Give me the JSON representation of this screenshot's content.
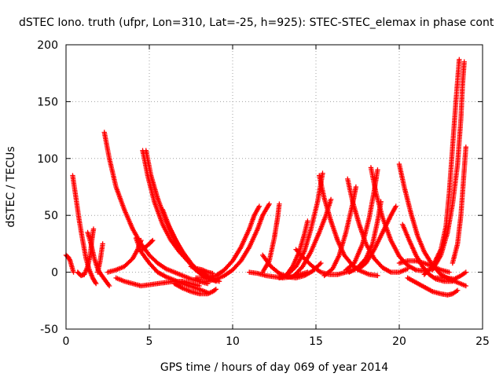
{
  "chart_data": {
    "type": "scatter",
    "title": "dSTEC Iono. truth (ufpr, Lon=310, Lat=-25, h=925): STEC-STEC_elemax in phase cont",
    "xlabel": "GPS time / hours of day 069 of year 2014",
    "ylabel": "dSTEC  / TECUs",
    "xlim": [
      0,
      25
    ],
    "ylim": [
      -50,
      200
    ],
    "x_ticks": [
      0,
      5,
      10,
      15,
      20,
      25
    ],
    "y_ticks": [
      -50,
      0,
      50,
      100,
      150,
      200
    ],
    "grid": true,
    "marker": "plus",
    "color": "#ff0000",
    "arcs": [
      {
        "points": [
          [
            0.0,
            15
          ],
          [
            0.15,
            13
          ],
          [
            0.25,
            10
          ],
          [
            0.35,
            5
          ],
          [
            0.45,
            0
          ]
        ]
      },
      {
        "points": [
          [
            0.4,
            85
          ],
          [
            0.6,
            65
          ],
          [
            0.8,
            45
          ],
          [
            1.0,
            28
          ],
          [
            1.2,
            12
          ],
          [
            1.4,
            2
          ],
          [
            1.6,
            -5
          ],
          [
            1.8,
            -10
          ]
        ]
      },
      {
        "points": [
          [
            0.7,
            0
          ],
          [
            0.9,
            -3
          ],
          [
            1.1,
            -2
          ],
          [
            1.3,
            5
          ],
          [
            1.45,
            15
          ],
          [
            1.55,
            28
          ],
          [
            1.65,
            38
          ]
        ]
      },
      {
        "points": [
          [
            1.3,
            35
          ],
          [
            1.5,
            25
          ],
          [
            1.7,
            12
          ],
          [
            1.9,
            3
          ],
          [
            2.1,
            -2
          ],
          [
            2.3,
            -6
          ],
          [
            2.6,
            -12
          ]
        ]
      },
      {
        "points": [
          [
            1.9,
            0
          ],
          [
            2.05,
            10
          ],
          [
            2.2,
            25
          ]
        ]
      },
      {
        "points": [
          [
            2.3,
            123
          ],
          [
            2.6,
            100
          ],
          [
            3.0,
            75
          ],
          [
            3.5,
            55
          ],
          [
            4.0,
            38
          ],
          [
            4.5,
            25
          ],
          [
            5.0,
            15
          ],
          [
            5.5,
            8
          ],
          [
            6.0,
            3
          ],
          [
            6.5,
            0
          ],
          [
            7.0,
            -3
          ],
          [
            7.5,
            -6
          ],
          [
            8.0,
            -8
          ],
          [
            8.5,
            -10
          ]
        ]
      },
      {
        "points": [
          [
            2.5,
            0
          ],
          [
            3.0,
            2
          ],
          [
            3.5,
            5
          ],
          [
            4.0,
            12
          ],
          [
            4.3,
            20
          ],
          [
            4.5,
            28
          ]
        ]
      },
      {
        "points": [
          [
            4.2,
            30
          ],
          [
            4.5,
            18
          ],
          [
            5.0,
            8
          ],
          [
            5.5,
            0
          ],
          [
            6.0,
            -4
          ],
          [
            7.0,
            -10
          ],
          [
            8.0,
            -15
          ],
          [
            8.5,
            -18
          ]
        ]
      },
      {
        "points": [
          [
            4.6,
            107
          ],
          [
            4.9,
            85
          ],
          [
            5.3,
            62
          ],
          [
            5.8,
            42
          ],
          [
            6.3,
            28
          ],
          [
            6.8,
            18
          ],
          [
            7.3,
            10
          ],
          [
            7.8,
            3
          ],
          [
            8.3,
            -2
          ],
          [
            8.8,
            -6
          ]
        ]
      },
      {
        "points": [
          [
            4.8,
            107
          ],
          [
            5.1,
            85
          ],
          [
            5.5,
            65
          ],
          [
            6.0,
            45
          ],
          [
            6.5,
            30
          ],
          [
            7.0,
            18
          ],
          [
            7.5,
            8
          ],
          [
            8.0,
            0
          ],
          [
            8.5,
            -5
          ],
          [
            9.0,
            -8
          ]
        ]
      },
      {
        "points": [
          [
            4.6,
            20
          ],
          [
            5.0,
            25
          ],
          [
            5.2,
            28
          ]
        ]
      },
      {
        "points": [
          [
            5.8,
            55
          ],
          [
            6.2,
            40
          ],
          [
            6.7,
            25
          ],
          [
            7.2,
            12
          ],
          [
            7.7,
            3
          ],
          [
            8.2,
            -3
          ],
          [
            8.7,
            -6
          ],
          [
            9.2,
            -8
          ]
        ]
      },
      {
        "points": [
          [
            3.0,
            -5
          ],
          [
            3.5,
            -8
          ],
          [
            4.0,
            -10
          ],
          [
            4.5,
            -12
          ],
          [
            5.0,
            -11
          ],
          [
            5.5,
            -10
          ],
          [
            6.0,
            -9
          ],
          [
            6.5,
            -8
          ],
          [
            7.0,
            -8
          ],
          [
            7.5,
            -10
          ],
          [
            8.0,
            -12
          ]
        ]
      },
      {
        "points": [
          [
            6.5,
            -10
          ],
          [
            7.0,
            -14
          ],
          [
            7.5,
            -17
          ],
          [
            8.0,
            -19
          ],
          [
            8.5,
            -19
          ],
          [
            8.8,
            -17
          ],
          [
            9.0,
            -15
          ]
        ]
      },
      {
        "points": [
          [
            7.5,
            5
          ],
          [
            7.9,
            3
          ],
          [
            8.2,
            2
          ],
          [
            8.5,
            0
          ],
          [
            8.8,
            -1
          ]
        ]
      },
      {
        "points": [
          [
            8.0,
            -8
          ],
          [
            8.5,
            -8
          ],
          [
            9.0,
            -6
          ],
          [
            9.5,
            -3
          ],
          [
            10.0,
            2
          ],
          [
            10.5,
            10
          ],
          [
            11.0,
            22
          ],
          [
            11.5,
            38
          ],
          [
            11.8,
            50
          ],
          [
            12.2,
            60
          ]
        ]
      },
      {
        "points": [
          [
            7.8,
            -5
          ],
          [
            8.5,
            -5
          ],
          [
            9.0,
            -3
          ],
          [
            9.5,
            2
          ],
          [
            10.0,
            10
          ],
          [
            10.5,
            22
          ],
          [
            11.0,
            38
          ],
          [
            11.3,
            50
          ],
          [
            11.6,
            58
          ]
        ]
      },
      {
        "points": [
          [
            11.0,
            0
          ],
          [
            11.5,
            -1
          ],
          [
            12.0,
            -3
          ],
          [
            12.5,
            -4
          ],
          [
            13.0,
            -5
          ],
          [
            13.5,
            -4
          ],
          [
            14.0,
            -2
          ],
          [
            14.5,
            0
          ]
        ]
      },
      {
        "points": [
          [
            11.8,
            0
          ],
          [
            12.2,
            10
          ],
          [
            12.5,
            30
          ],
          [
            12.7,
            48
          ],
          [
            12.8,
            60
          ]
        ]
      },
      {
        "points": [
          [
            11.8,
            15
          ],
          [
            12.3,
            5
          ],
          [
            12.8,
            -1
          ],
          [
            13.3,
            -4
          ],
          [
            13.8,
            -5
          ],
          [
            14.3,
            -3
          ],
          [
            14.8,
            1
          ],
          [
            15.3,
            8
          ]
        ]
      },
      {
        "points": [
          [
            12.8,
            -5
          ],
          [
            13.2,
            -3
          ],
          [
            13.6,
            5
          ],
          [
            14.0,
            18
          ],
          [
            14.3,
            33
          ],
          [
            14.5,
            45
          ]
        ]
      },
      {
        "points": [
          [
            13.3,
            -2
          ],
          [
            13.8,
            5
          ],
          [
            14.3,
            18
          ],
          [
            14.7,
            38
          ],
          [
            15.1,
            62
          ],
          [
            15.4,
            87
          ]
        ]
      },
      {
        "points": [
          [
            13.8,
            20
          ],
          [
            14.3,
            12
          ],
          [
            14.8,
            5
          ],
          [
            15.3,
            0
          ],
          [
            15.8,
            -2
          ],
          [
            16.3,
            -2
          ],
          [
            16.8,
            0
          ],
          [
            17.3,
            2
          ]
        ]
      },
      {
        "points": [
          [
            13.7,
            -3
          ],
          [
            14.2,
            5
          ],
          [
            14.7,
            18
          ],
          [
            15.2,
            35
          ],
          [
            15.6,
            50
          ],
          [
            15.9,
            64
          ]
        ]
      },
      {
        "points": [
          [
            15.2,
            85
          ],
          [
            15.5,
            65
          ],
          [
            15.9,
            45
          ],
          [
            16.3,
            28
          ],
          [
            16.7,
            15
          ],
          [
            17.2,
            6
          ],
          [
            17.7,
            1
          ],
          [
            18.2,
            -2
          ],
          [
            18.7,
            -3
          ]
        ]
      },
      {
        "points": [
          [
            15.5,
            -3
          ],
          [
            16.0,
            3
          ],
          [
            16.4,
            15
          ],
          [
            16.8,
            35
          ],
          [
            17.2,
            60
          ],
          [
            17.4,
            75
          ]
        ]
      },
      {
        "points": [
          [
            16.9,
            82
          ],
          [
            17.2,
            62
          ],
          [
            17.6,
            42
          ],
          [
            18.0,
            25
          ],
          [
            18.5,
            12
          ],
          [
            19.0,
            4
          ],
          [
            19.5,
            0
          ],
          [
            20.0,
            0
          ],
          [
            20.5,
            3
          ]
        ]
      },
      {
        "points": [
          [
            16.8,
            2
          ],
          [
            17.3,
            8
          ],
          [
            17.8,
            25
          ],
          [
            18.2,
            48
          ],
          [
            18.5,
            72
          ],
          [
            18.7,
            90
          ]
        ]
      },
      {
        "points": [
          [
            18.3,
            92
          ],
          [
            18.6,
            70
          ],
          [
            19.0,
            48
          ],
          [
            19.5,
            28
          ],
          [
            20.0,
            14
          ],
          [
            20.5,
            6
          ],
          [
            21.0,
            2
          ],
          [
            21.5,
            1
          ],
          [
            22.0,
            3
          ]
        ]
      },
      {
        "points": [
          [
            17.0,
            0
          ],
          [
            17.5,
            4
          ],
          [
            18.0,
            12
          ],
          [
            18.4,
            25
          ],
          [
            18.7,
            45
          ],
          [
            18.9,
            62
          ]
        ]
      },
      {
        "points": [
          [
            17.5,
            2
          ],
          [
            18.0,
            8
          ],
          [
            18.5,
            20
          ],
          [
            19.0,
            35
          ],
          [
            19.5,
            50
          ],
          [
            19.8,
            58
          ]
        ]
      },
      {
        "points": [
          [
            20.0,
            95
          ],
          [
            20.3,
            75
          ],
          [
            20.7,
            52
          ],
          [
            21.1,
            32
          ],
          [
            21.5,
            18
          ],
          [
            22.0,
            6
          ],
          [
            22.5,
            -2
          ],
          [
            23.0,
            -6
          ],
          [
            23.5,
            -9
          ],
          [
            24.0,
            -12
          ]
        ]
      },
      {
        "points": [
          [
            20.2,
            42
          ],
          [
            20.6,
            28
          ],
          [
            21.0,
            15
          ],
          [
            21.4,
            5
          ],
          [
            21.8,
            -2
          ],
          [
            22.2,
            -6
          ],
          [
            22.7,
            -8
          ],
          [
            23.2,
            -8
          ]
        ]
      },
      {
        "points": [
          [
            20.0,
            8
          ],
          [
            20.5,
            10
          ],
          [
            21.0,
            10
          ],
          [
            21.5,
            8
          ],
          [
            22.0,
            5
          ],
          [
            22.5,
            2
          ],
          [
            23.0,
            0
          ]
        ]
      },
      {
        "points": [
          [
            20.5,
            -5
          ],
          [
            21.0,
            -9
          ],
          [
            21.5,
            -13
          ],
          [
            22.0,
            -17
          ],
          [
            22.5,
            -19
          ],
          [
            22.9,
            -20
          ],
          [
            23.2,
            -19
          ],
          [
            23.5,
            -16
          ]
        ]
      },
      {
        "points": [
          [
            21.5,
            -2
          ],
          [
            22.0,
            5
          ],
          [
            22.5,
            20
          ],
          [
            22.8,
            40
          ],
          [
            23.0,
            70
          ],
          [
            23.2,
            110
          ],
          [
            23.4,
            150
          ],
          [
            23.6,
            187
          ]
        ]
      },
      {
        "points": [
          [
            22.0,
            2
          ],
          [
            22.5,
            15
          ],
          [
            22.9,
            35
          ],
          [
            23.2,
            60
          ],
          [
            23.5,
            95
          ],
          [
            23.7,
            135
          ],
          [
            23.8,
            165
          ],
          [
            23.9,
            185
          ]
        ]
      },
      {
        "points": [
          [
            23.2,
            8
          ],
          [
            23.5,
            25
          ],
          [
            23.7,
            50
          ],
          [
            23.85,
            80
          ],
          [
            24.0,
            110
          ]
        ]
      },
      {
        "points": [
          [
            22.2,
            -5
          ],
          [
            22.8,
            -5
          ],
          [
            23.3,
            -6
          ],
          [
            23.7,
            -3
          ],
          [
            24.0,
            0
          ]
        ]
      }
    ]
  }
}
